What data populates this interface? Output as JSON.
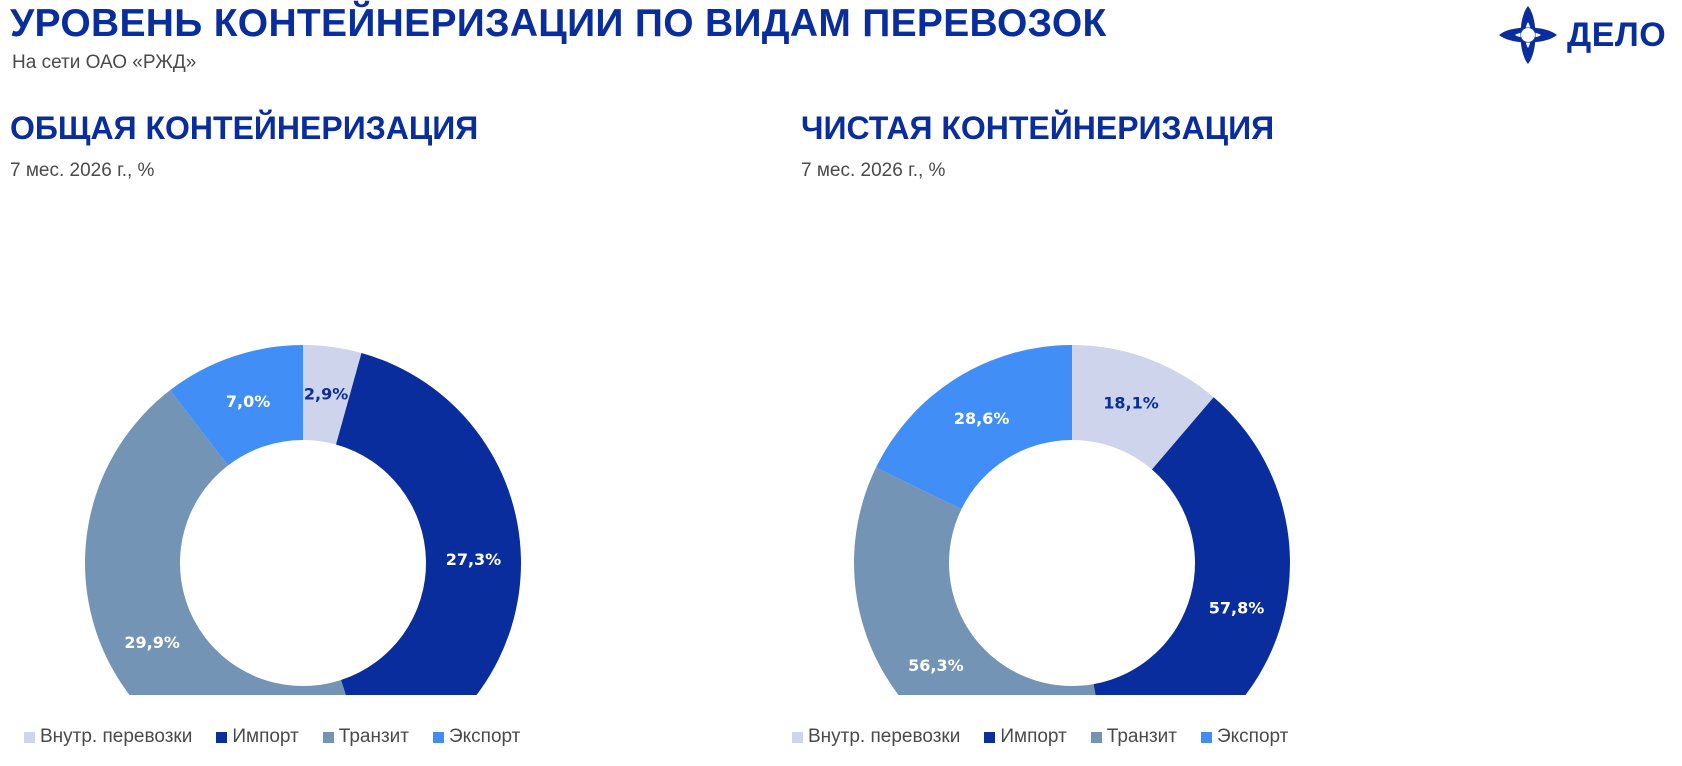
{
  "header": {
    "title": "УРОВЕНЬ КОНТЕЙНЕРИЗАЦИИ ПО ВИДАМ ПЕРЕВОЗОК",
    "subtitle": "На сети ОАО «РЖД»",
    "logo_text": "ДЕЛО"
  },
  "colors": {
    "brand": "#0a2d9e",
    "domestic": "#cdd4ec",
    "import": "#0a2d9e",
    "transit": "#7494b5",
    "export": "#418ef7"
  },
  "chart_data": [
    {
      "type": "pie",
      "donut": true,
      "title": "ОБЩАЯ КОНТЕЙНЕРИЗАЦИЯ",
      "subtitle": "7 мес. 2026 г., %",
      "legend_position": "bottom",
      "categories": [
        "Внутр. перевозки",
        "Импорт",
        "Транзит",
        "Экспорт"
      ],
      "values": [
        2.9,
        27.3,
        29.9,
        7.0
      ],
      "labels": [
        "2,9%",
        "27,3%",
        "29,9%",
        "7,0%"
      ],
      "colors": [
        "#cdd4ec",
        "#0a2d9e",
        "#7494b5",
        "#418ef7"
      ],
      "label_colors": [
        "#0a2d9e",
        "#ffffff",
        "#ffffff",
        "#ffffff"
      ]
    },
    {
      "type": "pie",
      "donut": true,
      "title": "ЧИСТАЯ КОНТЕЙНЕРИЗАЦИЯ",
      "subtitle": "7 мес. 2026 г., %",
      "legend_position": "bottom",
      "categories": [
        "Внутр. перевозки",
        "Импорт",
        "Транзит",
        "Экспорт"
      ],
      "values": [
        18.1,
        57.8,
        56.3,
        28.6
      ],
      "labels": [
        "18,1%",
        "57,8%",
        "56,3%",
        "28,6%"
      ],
      "colors": [
        "#cdd4ec",
        "#0a2d9e",
        "#7494b5",
        "#418ef7"
      ],
      "label_colors": [
        "#0a2d9e",
        "#ffffff",
        "#ffffff",
        "#ffffff"
      ]
    }
  ]
}
